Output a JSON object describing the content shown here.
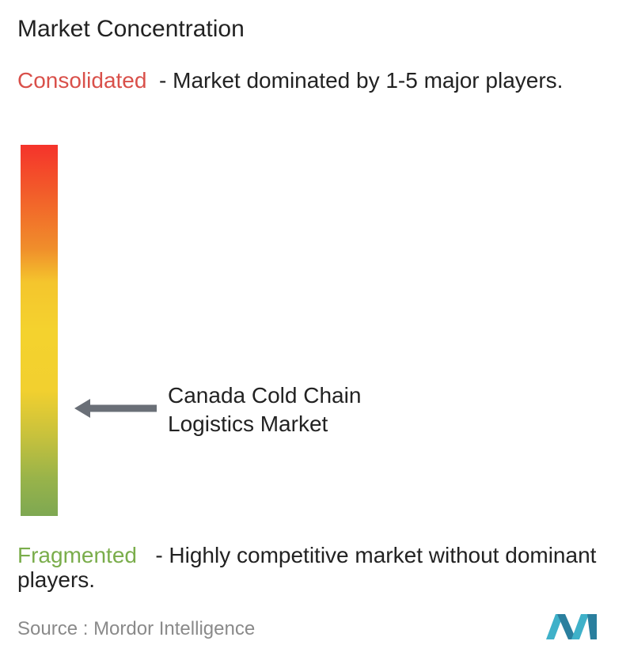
{
  "header": {
    "title": "Market Concentration"
  },
  "consolidated": {
    "label": "Consolidated",
    "description": "- Market dominated by 1-5 major players."
  },
  "marker": {
    "label": "Canada Cold Chain Logistics Market"
  },
  "fragmented": {
    "label": "Fragmented",
    "description": "- Highly competitive market without dominant players."
  },
  "source": {
    "label": "Source :",
    "name": "Mordor Intelligence"
  }
}
